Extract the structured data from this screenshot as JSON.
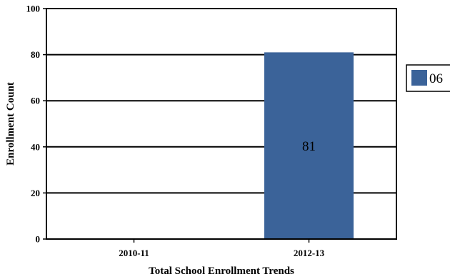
{
  "chart_data": {
    "type": "bar",
    "categories": [
      "2010-11",
      "2012-13"
    ],
    "series": [
      {
        "name": "06",
        "values": [
          null,
          81
        ],
        "color": "#3b6399"
      }
    ],
    "data_labels": [
      "",
      "81"
    ],
    "title": "",
    "xlabel": "Total School Enrollment Trends",
    "ylabel": "Enrollment Count",
    "ylim": [
      0,
      100
    ],
    "yticks": [
      0,
      20,
      40,
      60,
      80,
      100
    ],
    "grid": true,
    "legend_position": "right"
  }
}
